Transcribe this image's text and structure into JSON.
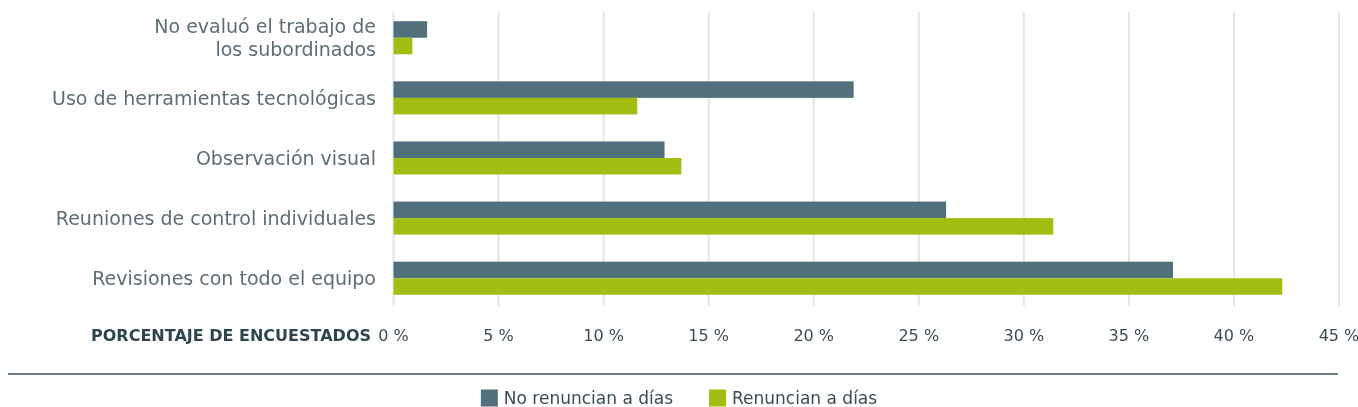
{
  "chart_data": {
    "type": "bar",
    "orientation": "horizontal",
    "categories": [
      "No evaluó el trabajo de\nlos subordinados",
      "Uso de herramientas tecnológicas",
      "Observación visual",
      "Reuniones de control individuales",
      "Revisiones con todo el equipo"
    ],
    "series": [
      {
        "name": "No renuncian a días",
        "color": "#51707c",
        "values": [
          1.6,
          21.9,
          12.9,
          26.3,
          37.1
        ]
      },
      {
        "name": "Renuncian a días",
        "color": "#a2be12",
        "values": [
          0.9,
          11.6,
          13.7,
          31.4,
          42.3
        ]
      }
    ],
    "xlabel": "PORCENTAJE DE ENCUESTADOS",
    "xlim": [
      0,
      45
    ],
    "xticks": [
      {
        "value": 0,
        "label": "0 %"
      },
      {
        "value": 5,
        "label": "5 %"
      },
      {
        "value": 10,
        "label": "10 %"
      },
      {
        "value": 15,
        "label": "15 %"
      },
      {
        "value": 20,
        "label": "20 %"
      },
      {
        "value": 25,
        "label": "25 %"
      },
      {
        "value": 30,
        "label": "30 %"
      },
      {
        "value": 35,
        "label": "35 %"
      },
      {
        "value": 40,
        "label": "40 %"
      },
      {
        "value": 45,
        "label": "45 %"
      }
    ],
    "grid": "x",
    "legend": "bottom"
  }
}
